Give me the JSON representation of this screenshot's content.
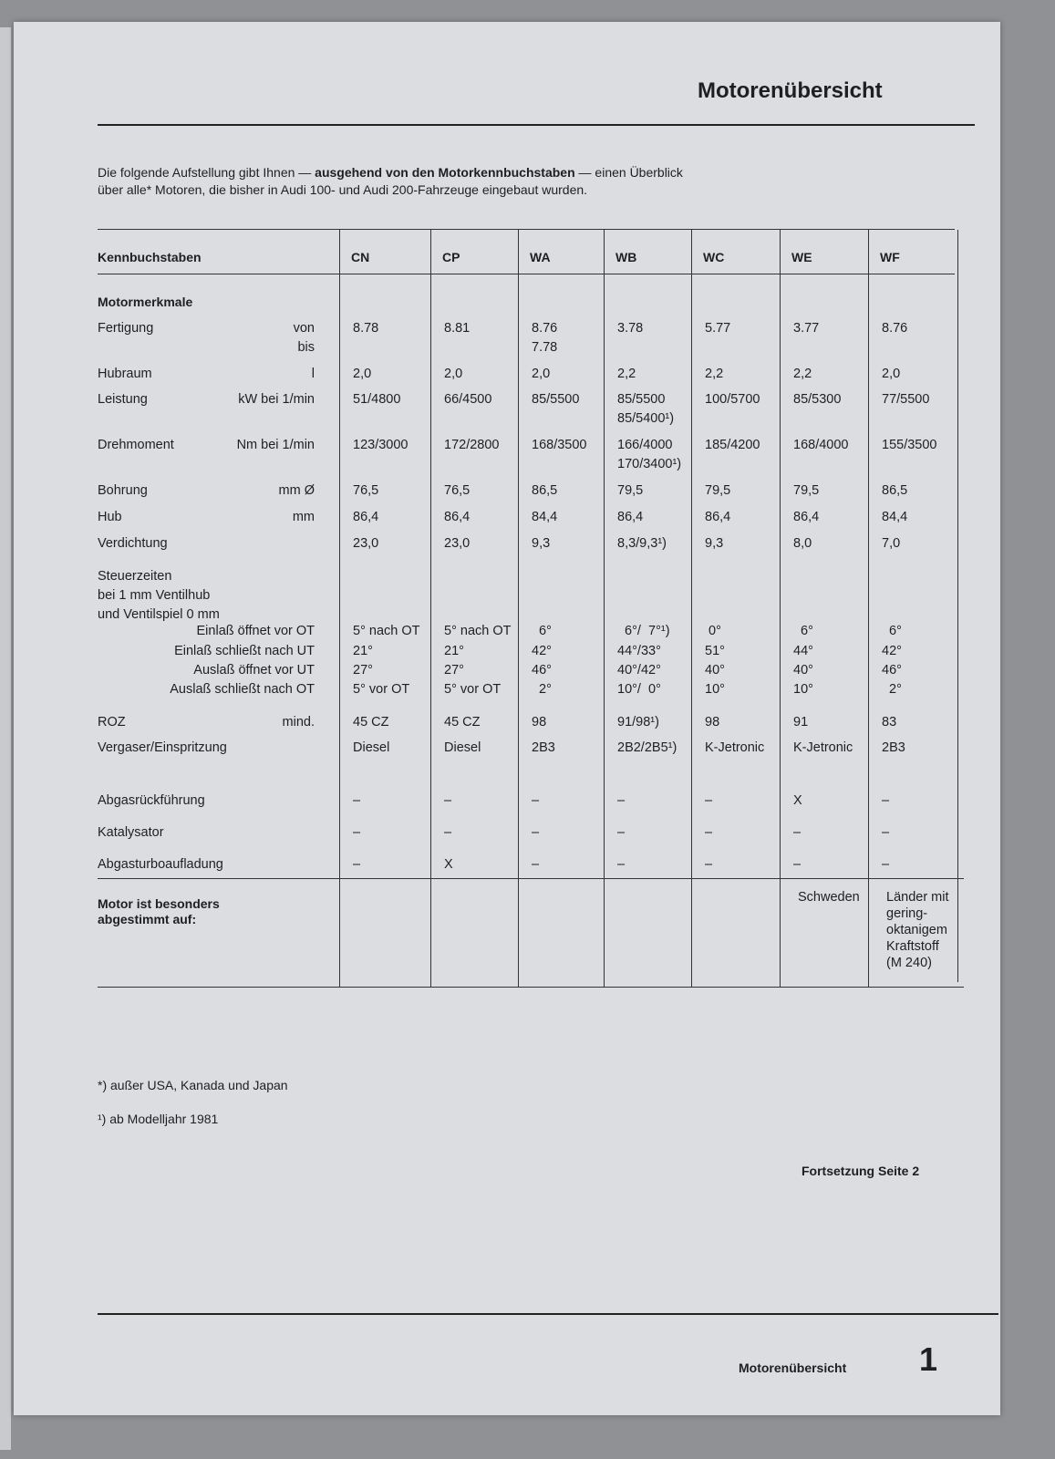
{
  "header": {
    "title": "Motorenübersicht"
  },
  "intro": {
    "line1_a": "Die folgende Aufstellung gibt Ihnen — ",
    "line1_b": "ausgehend von den Motorkennbuchstaben",
    "line1_c": " — einen Überblick",
    "line2": "über alle* Motoren, die bisher in Audi 100- und Audi 200-Fahrzeuge eingebaut wurden."
  },
  "table": {
    "header_label": "Kennbuchstaben",
    "columns": [
      "CN",
      "CP",
      "WA",
      "WB",
      "WC",
      "WE",
      "WF"
    ],
    "section_label": "Motormerkmale",
    "rows": [
      {
        "label": "Fertigung",
        "unit": "von\nbis",
        "values": [
          "8.78",
          "8.81",
          "8.76\n7.78",
          "3.78",
          "5.77",
          "3.77",
          "8.76"
        ]
      },
      {
        "label": "Hubraum",
        "unit": "l",
        "values": [
          "2,0",
          "2,0",
          "2,0",
          "2,2",
          "2,2",
          "2,2",
          "2,0"
        ]
      },
      {
        "label": "Leistung",
        "unit": "kW bei 1/min",
        "values": [
          "51/4800",
          "66/4500",
          "85/5500",
          "85/5500\n85/5400¹)",
          "100/5700",
          "85/5300",
          "77/5500"
        ]
      },
      {
        "label": "Drehmoment",
        "unit": "Nm bei 1/min",
        "values": [
          "123/3000",
          "172/2800",
          "168/3500",
          "166/4000\n170/3400¹)",
          "185/4200",
          "168/4000",
          "155/3500"
        ]
      },
      {
        "label": "Bohrung",
        "unit": "mm Ø",
        "values": [
          "76,5",
          "76,5",
          "86,5",
          "79,5",
          "79,5",
          "79,5",
          "86,5"
        ]
      },
      {
        "label": "Hub",
        "unit": "mm",
        "values": [
          "86,4",
          "86,4",
          "84,4",
          "86,4",
          "86,4",
          "86,4",
          "84,4"
        ]
      },
      {
        "label": "Verdichtung",
        "unit": "",
        "values": [
          "23,0",
          "23,0",
          "9,3",
          "8,3/9,3¹)",
          "9,3",
          "8,0",
          "7,0"
        ]
      },
      {
        "label": "Steuerzeiten\nbei 1 mm Ventilhub\nund Ventilspiel 0 mm",
        "unit": "",
        "values": [
          "",
          "",
          "",
          "",
          "",
          "",
          ""
        ]
      },
      {
        "label": "",
        "unit": "Einlaß öffnet vor OT",
        "values": [
          "5° nach OT",
          "5° nach OT",
          "  6°",
          "  6°/  7°¹)",
          " 0°",
          "  6°",
          "  6°"
        ]
      },
      {
        "label": "",
        "unit": "Einlaß schließt nach UT",
        "values": [
          "21°",
          "21°",
          "42°",
          "44°/33°",
          "51°",
          "44°",
          "42°"
        ]
      },
      {
        "label": "",
        "unit": "Auslaß öffnet vor UT",
        "values": [
          "27°",
          "27°",
          "46°",
          "40°/42°",
          "40°",
          "40°",
          "46°"
        ]
      },
      {
        "label": "",
        "unit": "Auslaß schließt nach OT",
        "values": [
          "5° vor OT",
          "5° vor OT",
          "  2°",
          "10°/  0°",
          "10°",
          "10°",
          "  2°"
        ]
      },
      {
        "label": "ROZ",
        "unit": "mind.",
        "values": [
          "45 CZ",
          "45 CZ",
          "98",
          "91/98¹)",
          "98",
          "91",
          "83"
        ]
      },
      {
        "label": "Vergaser/Einspritzung",
        "unit": "",
        "values": [
          "Diesel",
          "Diesel",
          "2B3",
          "2B2/2B5¹)",
          "K-Jetronic",
          "K-Jetronic",
          "2B3"
        ]
      },
      {
        "label": "Abgasrückführung",
        "unit": "",
        "values": [
          "–",
          "–",
          "–",
          "–",
          "–",
          "X",
          "–"
        ]
      },
      {
        "label": "Katalysator",
        "unit": "",
        "values": [
          "–",
          "–",
          "–",
          "–",
          "–",
          "–",
          "–"
        ]
      },
      {
        "label": "Abgasturboaufladung",
        "unit": "",
        "values": [
          "–",
          "X",
          "–",
          "–",
          "–",
          "–",
          "–"
        ]
      }
    ],
    "special": {
      "label": "Motor ist besonders\nabgestimmt auf:",
      "values": [
        "",
        "",
        "",
        "",
        "",
        "Schweden",
        "Länder mit\ngering-\noktanigem\nKraftstoff\n(M 240)"
      ]
    }
  },
  "footnotes": [
    "*) außer USA, Kanada und Japan",
    "¹) ab Modelljahr 1981"
  ],
  "continuation": "Fortsetzung Seite 2",
  "footer": {
    "section": "Motorenübersicht",
    "page_number": "1"
  }
}
